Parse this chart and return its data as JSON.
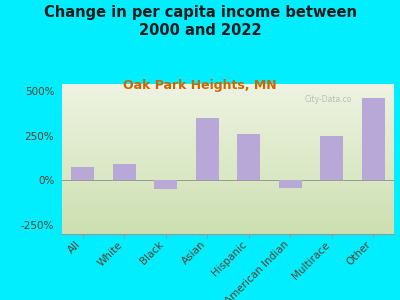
{
  "title": "Change in per capita income between\n2000 and 2022",
  "subtitle": "Oak Park Heights, MN",
  "categories": [
    "All",
    "White",
    "Black",
    "Asian",
    "Hispanic",
    "American Indian",
    "Multirace",
    "Other"
  ],
  "values": [
    75,
    90,
    -50,
    350,
    260,
    -40,
    250,
    460
  ],
  "bar_color": "#b8a8d8",
  "background_outer": "#00eeff",
  "background_chart_top": "#eef3e2",
  "background_chart_bottom": "#cde0b0",
  "title_color": "#1a1a1a",
  "subtitle_color": "#cc6600",
  "tick_label_color": "#5a3e2b",
  "ylim": [
    -300,
    540
  ],
  "yticks": [
    -250,
    0,
    250,
    500
  ],
  "ytick_labels": [
    "-250%",
    "0%",
    "250%",
    "500%"
  ],
  "title_fontsize": 10.5,
  "subtitle_fontsize": 9,
  "tick_fontsize": 7.5,
  "bar_width": 0.55
}
